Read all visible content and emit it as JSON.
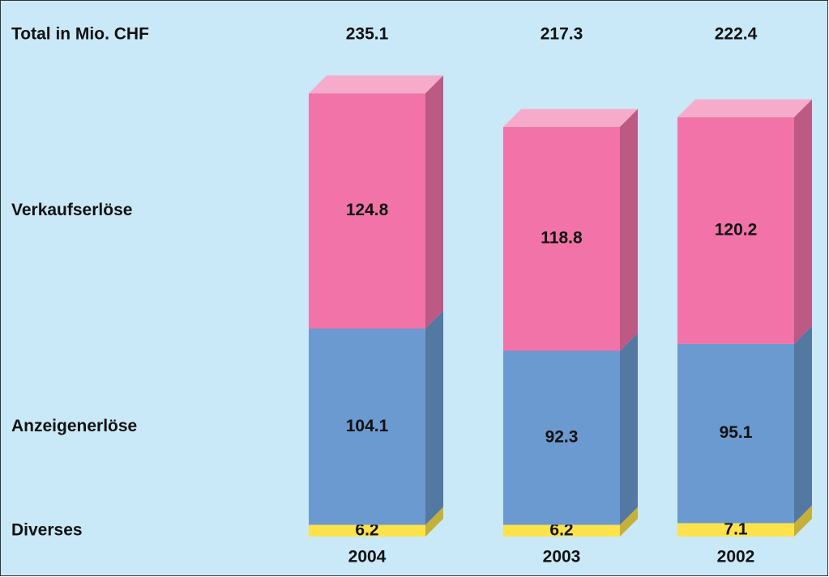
{
  "chart_data": {
    "type": "bar",
    "stacked": true,
    "title": "Total in Mio. CHF",
    "categories": [
      "2004",
      "2003",
      "2002"
    ],
    "totals": [
      235.1,
      217.3,
      222.4
    ],
    "series": [
      {
        "name": "Diverses",
        "color": "#fde24a",
        "values": [
          6.2,
          6.2,
          7.1
        ]
      },
      {
        "name": "Anzeigenerlöse",
        "color": "#6b9ad0",
        "values": [
          104.1,
          92.3,
          95.1
        ]
      },
      {
        "name": "Verkaufserlöse",
        "color": "#f173a8",
        "values": [
          124.8,
          118.8,
          120.2
        ]
      }
    ]
  }
}
